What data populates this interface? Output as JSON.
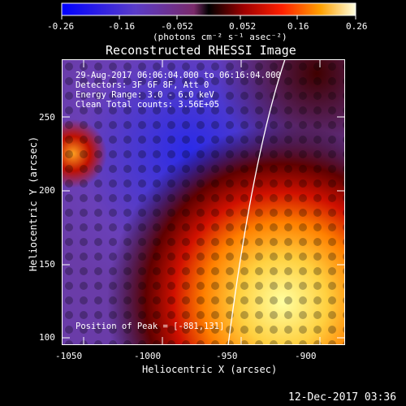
{
  "colorbar": {
    "ticks": [
      "-0.26",
      "-0.16",
      "-0.052",
      "0.052",
      "0.16",
      "0.26"
    ],
    "units_label": "(photons cm⁻² s⁻¹ asec⁻²)"
  },
  "plot": {
    "title": "Reconstructed RHESSI Image",
    "info_lines": [
      "29-Aug-2017 06:06:04.000 to 06:16:04.000",
      "Detectors: 3F 6F 8F, Att 0",
      "Energy Range: 3.0 - 6.0 keV",
      "Clean    Total counts: 3.56E+05"
    ],
    "peak_label": "Position of Peak = [-881,131]",
    "x_label": "Heliocentric X (arcsec)",
    "y_label": "Heliocentric Y (arcsec)",
    "x_ticks": [
      "-1050",
      "-1000",
      "-950",
      "-900"
    ],
    "y_ticks": [
      "250",
      "200",
      "150",
      "100"
    ]
  },
  "footer": {
    "timestamp": "12-Dec-2017 03:36"
  },
  "colors": {
    "background": "#000000",
    "frame": "#ffffff",
    "limb_line": "#ffffff"
  }
}
